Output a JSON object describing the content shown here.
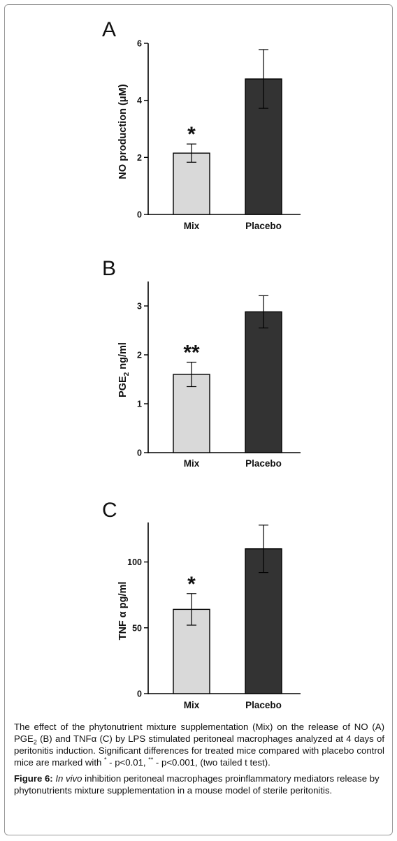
{
  "chart_data": [
    {
      "type": "bar",
      "panel_label": "A",
      "categories": [
        "Mix",
        "Placebo"
      ],
      "values": [
        2.15,
        4.75
      ],
      "error": [
        0.32,
        1.03
      ],
      "significance": [
        "*",
        ""
      ],
      "ylabel": "NO production (μM)",
      "ylim": [
        0,
        6
      ],
      "yticks": [
        0,
        2,
        4,
        6
      ],
      "colors": [
        "#d9d9d9",
        "#333333"
      ]
    },
    {
      "type": "bar",
      "panel_label": "B",
      "categories": [
        "Mix",
        "Placebo"
      ],
      "values": [
        1.6,
        2.88
      ],
      "error": [
        0.25,
        0.33
      ],
      "significance": [
        "**",
        ""
      ],
      "ylabel": {
        "main": "PGE",
        "sub": "2",
        "rest": " ng/ml"
      },
      "ylim": [
        0,
        3.5
      ],
      "yticks": [
        0,
        1,
        2,
        3
      ],
      "colors": [
        "#d9d9d9",
        "#333333"
      ]
    },
    {
      "type": "bar",
      "panel_label": "C",
      "categories": [
        "Mix",
        "Placebo"
      ],
      "values": [
        64,
        110
      ],
      "error": [
        12,
        18
      ],
      "significance": [
        "*",
        ""
      ],
      "ylabel": "TNF α pg/ml",
      "ylim": [
        0,
        130
      ],
      "yticks": [
        0,
        50,
        100
      ],
      "colors": [
        "#d9d9d9",
        "#333333"
      ]
    }
  ],
  "caption": {
    "p1": "The effect of the phytonutrient mixture supplementation (Mix) on the release of NO (A) PGE",
    "p1_sub": "2",
    "p2": " (B) and TNFα (C) by LPS stimulated peritoneal macrophages analyzed at 4 days of peritonitis induction. Significant differences for treated mice compared with placebo control mice are marked with ",
    "mark1": "*",
    "p3": " - p<0.01, ",
    "mark2": "**",
    "p4": " - p<0.001, (two tailed t test)."
  },
  "figure": {
    "label": "Figure 6:",
    "italic": "In vivo",
    "text": " inhibition peritoneal macrophages proinflammatory mediators release by phytonutrients mixture supplementation in a mouse model of sterile peritonitis."
  }
}
